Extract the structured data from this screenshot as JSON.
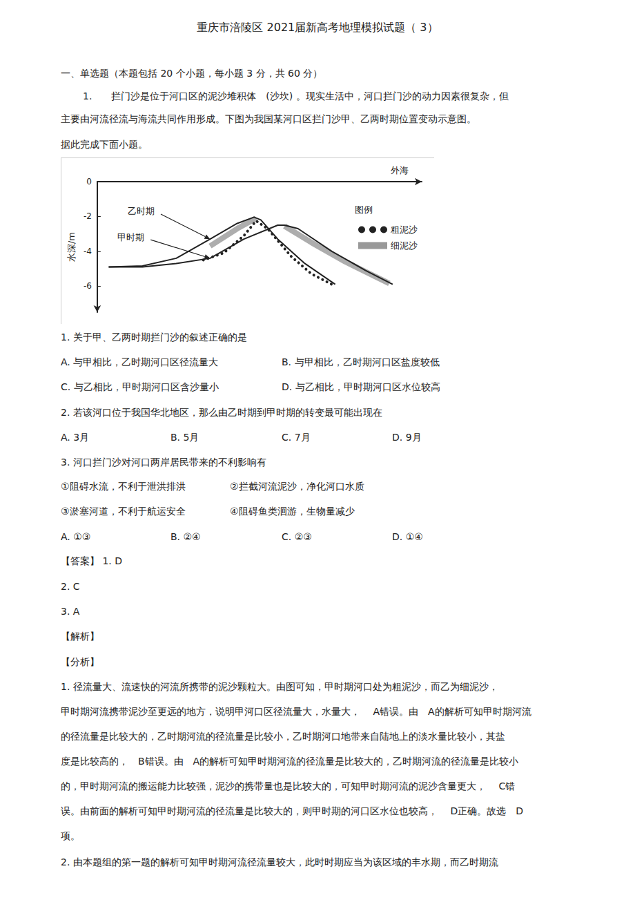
{
  "document": {
    "title": "重庆市涪陵区 2021届新高考地理模拟试题（ 3）",
    "intro": [
      "一、单选题（本题包括 20 个小题，每小题 3 分，共 60 分）",
      "1.　　拦门沙是位于河口区的泥沙堆积体　(沙坎) 。现实生活中，河口拦门沙的动力因素很复杂，但",
      "主要由河流径流与海流共同作用形成。下图为我国某河口区拦门沙甲、乙两时期位置变动示意图。",
      "据此完成下面小题。"
    ],
    "body": [
      [
        "1. 关于甲、乙两时期拦门沙的叙述正确的是"
      ],
      [
        "A. 与甲相比，乙时期河口区径流量大",
        "B. 与甲相比，乙时期河口区盐度较低"
      ],
      [
        "C. 与乙相比，甲时期河口区含沙量小",
        "D. 与乙相比，甲时期河口区水位较高"
      ],
      [
        "2. 若该河口位于我国华北地区，那么由乙时期到甲时期的转变最可能出现在"
      ],
      [
        "A. 3月",
        "B. 5月",
        "C. 7月",
        "D. 9月"
      ],
      [
        "3. 河口拦门沙对河口两岸居民带来的不利影响有"
      ],
      [
        "①阻碍水流，不利于泄洪排洪",
        "②拦截河流泥沙，净化河口水质"
      ],
      [
        "③淤塞河道，不利于航运安全",
        "④阻碍鱼类洄游，生物量减少"
      ],
      [
        "A. ①③",
        "B. ②④",
        "C. ②③",
        "D. ①④"
      ],
      [
        "【答案】 1. D"
      ],
      [
        "2. C"
      ],
      [
        "3. A"
      ],
      [
        "【解析】"
      ],
      [
        "【分析】"
      ],
      [
        "1. 径流量大、流速快的河流所携带的泥沙颗粒大。由图可知，甲时期河口处为粗泥沙，而乙为细泥沙，"
      ],
      [
        "甲时期河流携带泥沙至更远的地方，说明甲河口区径流量大，水量大，　 A错误。由　A的解析可知甲时期河流"
      ],
      [
        "的径流量是比较大的，乙时期河流的径流量是比较小，乙时期河口地带来自陆地上的淡水量比较小，其盐"
      ],
      [
        "度是比较高的，　B错误。由　A的解析可知甲时期河流的径流量是比较大的，乙时期河流的径流量是比较小"
      ],
      [
        "的，甲时期河流的搬运能力比较强，泥沙的携带量也是比较大的，可知甲时期河流的泥沙含量更大，　 C错"
      ],
      [
        "误。由前面的解析可知甲时期河流的径流量是比较大的，则甲时期的河口区水位也较高，　 D正确。故选　D"
      ],
      [
        "项。"
      ],
      [
        "2. 由本题组的第一题的解析可知甲时期河流径流量较大，此时时期应当为该区域的丰水期，而乙时期流"
      ]
    ]
  },
  "chart_data": {
    "type": "line",
    "xlabel": "外海",
    "ylabel": "水深/m",
    "xlim": [
      0,
      48
    ],
    "ylim": [
      -7.5,
      0
    ],
    "yticks": [
      0,
      -2,
      -4,
      -6
    ],
    "tick_labels": "y",
    "grid": false,
    "legend": "upper right",
    "legend_title": "图例",
    "annotations": [
      "乙时期",
      "甲时期"
    ],
    "series": [
      {
        "name": "粗泥沙",
        "color": "#222222",
        "line_style": "dotted",
        "x": [
          15.7,
          18.7,
          21.7,
          23.5,
          25.2,
          28.7,
          31.7,
          34.7
        ],
        "values": [
          -4.5,
          -4.1,
          -3.1,
          -2.25,
          -2.7,
          -4.3,
          -5.3,
          -5.9
        ]
      },
      {
        "name": "细泥沙",
        "color": "#999999",
        "line_style": "band",
        "x": [
          16.7,
          20.7,
          23.5,
          25.6,
          27.7,
          31.7,
          36.7,
          43.2
        ],
        "values": [
          -3.7,
          -2.7,
          -2.1,
          null,
          -2.55,
          -3.5,
          -4.6,
          -5.85
        ]
      },
      {
        "name": "乙时期",
        "color": "#222222",
        "line_style": "solid",
        "x": [
          1.7,
          6.7,
          11.7,
          16.7,
          20.7,
          23.2,
          24.2,
          26.7,
          30.7,
          35.2
        ],
        "values": [
          -4.9,
          -4.84,
          -4.4,
          -3.3,
          -2.4,
          -2.04,
          -2.2,
          -3.3,
          -4.7,
          -5.9
        ]
      },
      {
        "name": "甲时期",
        "color": "#222222",
        "line_style": "solid",
        "x": [
          1.7,
          6.7,
          11.7,
          16.7,
          21.7,
          26.7,
          27.7,
          29.7,
          34.7,
          39.7,
          43.7
        ],
        "values": [
          -4.9,
          -4.9,
          -4.7,
          -4.4,
          -3.3,
          -2.5,
          -2.5,
          -2.7,
          -4.0,
          -5.1,
          -5.9
        ]
      }
    ]
  }
}
